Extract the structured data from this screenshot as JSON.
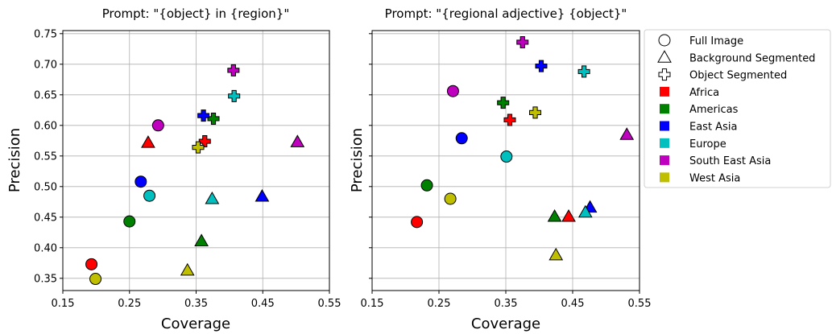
{
  "chart_data": [
    {
      "type": "scatter",
      "title": "Prompt: \"{object} in {region}\"",
      "xlabel": "Coverage",
      "ylabel": "Precision",
      "xlim": [
        0.15,
        0.55
      ],
      "ylim": [
        0.33,
        0.755
      ],
      "xticks": [
        0.15,
        0.25,
        0.35,
        0.45,
        0.55
      ],
      "xtick_labels": [
        "0.15",
        "0.25",
        "0.35",
        "0.45",
        "0.55"
      ],
      "yticks": [
        0.35,
        0.4,
        0.45,
        0.5,
        0.55,
        0.6,
        0.65,
        0.7,
        0.75
      ],
      "ytick_labels": [
        "0.35",
        "0.40",
        "0.45",
        "0.50",
        "0.55",
        "0.60",
        "0.65",
        "0.70",
        "0.75"
      ],
      "grid": true,
      "points": [
        {
          "region": "Africa",
          "marker": "circle",
          "x": 0.193,
          "y": 0.373
        },
        {
          "region": "Americas",
          "marker": "circle",
          "x": 0.25,
          "y": 0.443
        },
        {
          "region": "East Asia",
          "marker": "circle",
          "x": 0.267,
          "y": 0.508
        },
        {
          "region": "Europe",
          "marker": "circle",
          "x": 0.28,
          "y": 0.485
        },
        {
          "region": "South East Asia",
          "marker": "circle",
          "x": 0.293,
          "y": 0.6
        },
        {
          "region": "West Asia",
          "marker": "circle",
          "x": 0.199,
          "y": 0.349
        },
        {
          "region": "Africa",
          "marker": "triangle",
          "x": 0.278,
          "y": 0.572
        },
        {
          "region": "Americas",
          "marker": "triangle",
          "x": 0.358,
          "y": 0.411
        },
        {
          "region": "East Asia",
          "marker": "triangle",
          "x": 0.449,
          "y": 0.484
        },
        {
          "region": "Europe",
          "marker": "triangle",
          "x": 0.374,
          "y": 0.48
        },
        {
          "region": "South East Asia",
          "marker": "triangle",
          "x": 0.502,
          "y": 0.573
        },
        {
          "region": "West Asia",
          "marker": "triangle",
          "x": 0.337,
          "y": 0.363
        },
        {
          "region": "Africa",
          "marker": "plus",
          "x": 0.363,
          "y": 0.574
        },
        {
          "region": "Americas",
          "marker": "plus",
          "x": 0.376,
          "y": 0.611
        },
        {
          "region": "East Asia",
          "marker": "plus",
          "x": 0.361,
          "y": 0.616
        },
        {
          "region": "Europe",
          "marker": "plus",
          "x": 0.407,
          "y": 0.648
        },
        {
          "region": "South East Asia",
          "marker": "plus",
          "x": 0.406,
          "y": 0.69
        },
        {
          "region": "West Asia",
          "marker": "plus",
          "x": 0.353,
          "y": 0.564
        }
      ]
    },
    {
      "type": "scatter",
      "title": "Prompt: \"{regional adjective} {object}\"",
      "xlabel": "Coverage",
      "ylabel": "Precision",
      "xlim": [
        0.15,
        0.55
      ],
      "ylim": [
        0.33,
        0.755
      ],
      "xticks": [
        0.15,
        0.25,
        0.35,
        0.45,
        0.55
      ],
      "xtick_labels": [
        "0.15",
        "0.25",
        "0.35",
        "0.45",
        "0.55"
      ],
      "grid": true,
      "points": [
        {
          "region": "Africa",
          "marker": "circle",
          "x": 0.217,
          "y": 0.442
        },
        {
          "region": "Americas",
          "marker": "circle",
          "x": 0.232,
          "y": 0.502
        },
        {
          "region": "East Asia",
          "marker": "circle",
          "x": 0.284,
          "y": 0.579
        },
        {
          "region": "Europe",
          "marker": "circle",
          "x": 0.351,
          "y": 0.549
        },
        {
          "region": "South East Asia",
          "marker": "circle",
          "x": 0.271,
          "y": 0.656
        },
        {
          "region": "West Asia",
          "marker": "circle",
          "x": 0.267,
          "y": 0.48
        },
        {
          "region": "Africa",
          "marker": "triangle",
          "x": 0.444,
          "y": 0.451
        },
        {
          "region": "Americas",
          "marker": "triangle",
          "x": 0.423,
          "y": 0.451
        },
        {
          "region": "East Asia",
          "marker": "triangle",
          "x": 0.476,
          "y": 0.466
        },
        {
          "region": "Europe",
          "marker": "triangle",
          "x": 0.469,
          "y": 0.458
        },
        {
          "region": "South East Asia",
          "marker": "triangle",
          "x": 0.531,
          "y": 0.585
        },
        {
          "region": "West Asia",
          "marker": "triangle",
          "x": 0.425,
          "y": 0.388
        },
        {
          "region": "Africa",
          "marker": "plus",
          "x": 0.356,
          "y": 0.609
        },
        {
          "region": "Americas",
          "marker": "plus",
          "x": 0.346,
          "y": 0.637
        },
        {
          "region": "East Asia",
          "marker": "plus",
          "x": 0.403,
          "y": 0.697
        },
        {
          "region": "Europe",
          "marker": "plus",
          "x": 0.467,
          "y": 0.688
        },
        {
          "region": "South East Asia",
          "marker": "plus",
          "x": 0.375,
          "y": 0.736
        },
        {
          "region": "West Asia",
          "marker": "plus",
          "x": 0.394,
          "y": 0.621
        }
      ]
    }
  ],
  "legend": {
    "placement": "right",
    "markers": [
      {
        "shape": "circle",
        "label": "Full Image"
      },
      {
        "shape": "triangle",
        "label": "Background Segmented"
      },
      {
        "shape": "plus",
        "label": "Object Segmented"
      }
    ],
    "regions": [
      {
        "label": "Africa",
        "color": "#ff0000"
      },
      {
        "label": "Americas",
        "color": "#008000"
      },
      {
        "label": "East Asia",
        "color": "#0000ff"
      },
      {
        "label": "Europe",
        "color": "#00bfbf"
      },
      {
        "label": "South East Asia",
        "color": "#bf00bf"
      },
      {
        "label": "West Asia",
        "color": "#bfbf00"
      }
    ]
  }
}
